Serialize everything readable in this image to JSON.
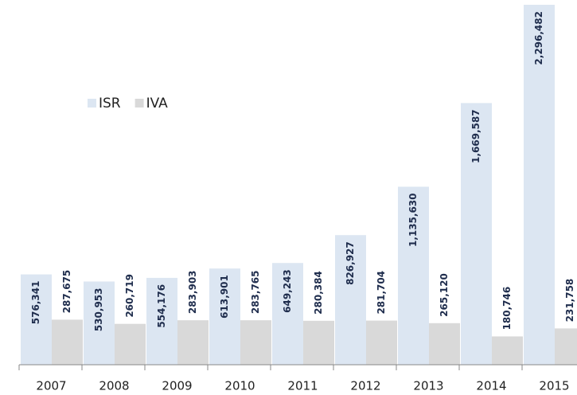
{
  "chart_data": {
    "type": "bar",
    "categories": [
      "2007",
      "2008",
      "2009",
      "2010",
      "2011",
      "2012",
      "2013",
      "2014",
      "2015"
    ],
    "series": [
      {
        "name": "ISR",
        "color": "#dce6f2",
        "values": [
          576341,
          530953,
          554176,
          613901,
          649243,
          826927,
          1135630,
          1669587,
          2296482
        ],
        "value_labels": [
          "576,341",
          "530,953",
          "554,176",
          "613,901",
          "649,243",
          "826,927",
          "1,135,630",
          "1,669,587",
          "2,296,482"
        ]
      },
      {
        "name": "IVA",
        "color": "#d9d9d9",
        "values": [
          287675,
          260719,
          283903,
          283765,
          280384,
          281704,
          265120,
          180746,
          231758
        ],
        "value_labels": [
          "287,675",
          "260,719",
          "283,903",
          "283,765",
          "280,384",
          "281,704",
          "265,120",
          "180,746",
          "231,758"
        ]
      }
    ],
    "legend": "upper left"
  }
}
